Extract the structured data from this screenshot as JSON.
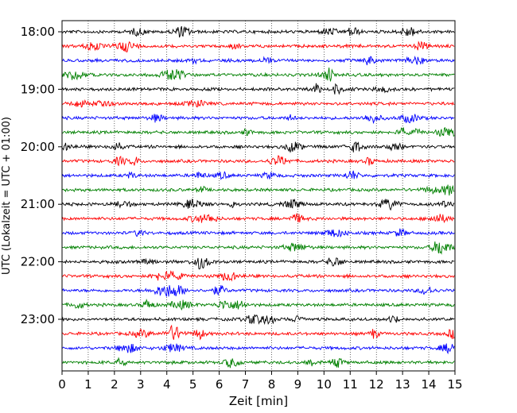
{
  "chart_data": {
    "type": "line",
    "title": "",
    "xlabel": "Zeit  [min]",
    "ylabel": "UTC (Lokalzeit = UTC + 01:00)",
    "xlim": [
      0,
      15
    ],
    "x_ticks": [
      "0",
      "1",
      "2",
      "3",
      "4",
      "5",
      "6",
      "7",
      "8",
      "9",
      "10",
      "11",
      "12",
      "13",
      "14",
      "15"
    ],
    "y_tick_labels": [
      "18:00",
      "19:00",
      "20:00",
      "21:00",
      "22:00",
      "23:00"
    ],
    "grid": "vertical dotted lines at each minute",
    "trace_interval_min": 15,
    "trace_colors": [
      "#000000",
      "#ff0000",
      "#0000ff",
      "#008000"
    ],
    "series": [
      {
        "start": "18:00",
        "color": "#000000"
      },
      {
        "start": "18:15",
        "color": "#ff0000"
      },
      {
        "start": "18:30",
        "color": "#0000ff"
      },
      {
        "start": "18:45",
        "color": "#008000"
      },
      {
        "start": "19:00",
        "color": "#000000"
      },
      {
        "start": "19:15",
        "color": "#ff0000"
      },
      {
        "start": "19:30",
        "color": "#0000ff"
      },
      {
        "start": "19:45",
        "color": "#008000"
      },
      {
        "start": "20:00",
        "color": "#000000"
      },
      {
        "start": "20:15",
        "color": "#ff0000"
      },
      {
        "start": "20:30",
        "color": "#0000ff"
      },
      {
        "start": "20:45",
        "color": "#008000"
      },
      {
        "start": "21:00",
        "color": "#000000"
      },
      {
        "start": "21:15",
        "color": "#ff0000"
      },
      {
        "start": "21:30",
        "color": "#0000ff"
      },
      {
        "start": "21:45",
        "color": "#008000"
      },
      {
        "start": "22:00",
        "color": "#000000"
      },
      {
        "start": "22:15",
        "color": "#ff0000"
      },
      {
        "start": "22:30",
        "color": "#0000ff"
      },
      {
        "start": "22:45",
        "color": "#008000"
      },
      {
        "start": "23:00",
        "color": "#000000"
      },
      {
        "start": "23:15",
        "color": "#ff0000"
      },
      {
        "start": "23:30",
        "color": "#0000ff"
      },
      {
        "start": "23:45",
        "color": "#008000"
      }
    ]
  }
}
